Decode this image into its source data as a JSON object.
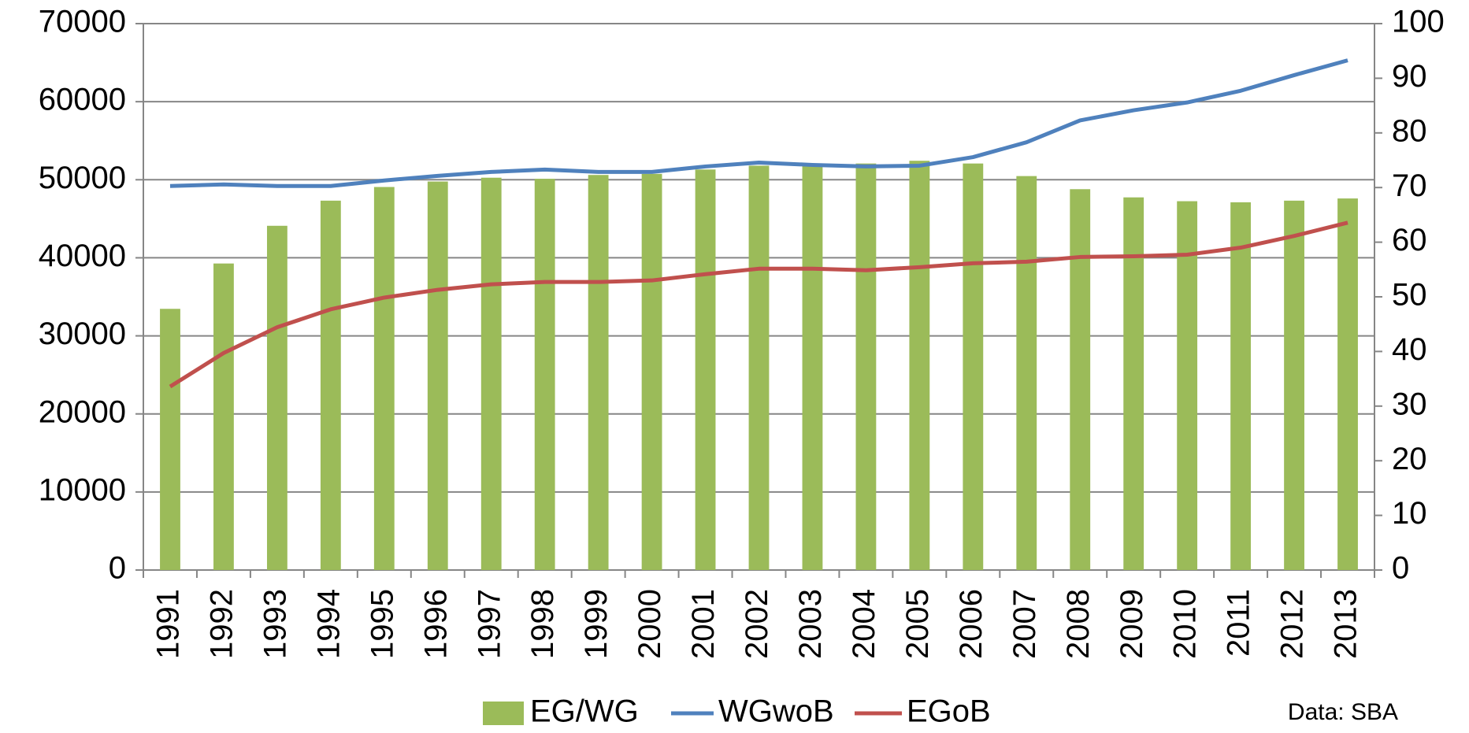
{
  "chart_data": {
    "type": "bar_line",
    "categories": [
      "1991",
      "1992",
      "1993",
      "1994",
      "1995",
      "1996",
      "1997",
      "1998",
      "1999",
      "2000",
      "2001",
      "2002",
      "2003",
      "2004",
      "2005",
      "2006",
      "2007",
      "2008",
      "2009",
      "2010",
      "2011",
      "2012",
      "2013"
    ],
    "series": [
      {
        "name": "EG/WG",
        "type": "bar",
        "axis": "y2",
        "color": "#9bbb59",
        "values": [
          47.8,
          56.1,
          63.0,
          67.6,
          70.1,
          71.1,
          71.8,
          71.6,
          72.3,
          72.5,
          73.3,
          74.0,
          74.0,
          74.4,
          74.9,
          74.4,
          72.1,
          69.7,
          68.2,
          67.5,
          67.3,
          67.6,
          68.0
        ]
      },
      {
        "name": "WGwoB",
        "type": "line",
        "axis": "y",
        "color": "#4f81bd",
        "values": [
          49200,
          49400,
          49200,
          49200,
          49900,
          50500,
          51000,
          51300,
          51000,
          51000,
          51700,
          52200,
          51900,
          51700,
          51800,
          52900,
          54800,
          57600,
          58900,
          59900,
          61400,
          63400,
          65300
        ]
      },
      {
        "name": "EGoB",
        "type": "line",
        "axis": "y",
        "color": "#c0504d",
        "values": [
          23500,
          27800,
          31100,
          33400,
          34900,
          35900,
          36600,
          36900,
          36900,
          37100,
          37900,
          38600,
          38600,
          38400,
          38800,
          39300,
          39500,
          40100,
          40200,
          40400,
          41300,
          42800,
          44500
        ]
      }
    ],
    "ylim": [
      0,
      70000
    ],
    "yticks": [
      0,
      10000,
      20000,
      30000,
      40000,
      50000,
      60000,
      70000
    ],
    "y2lim": [
      0,
      100
    ],
    "y2ticks": [
      0,
      10,
      20,
      30,
      40,
      50,
      60,
      70,
      80,
      90,
      100
    ],
    "grid": true,
    "legend": "bottom",
    "note": "Data: SBA"
  }
}
